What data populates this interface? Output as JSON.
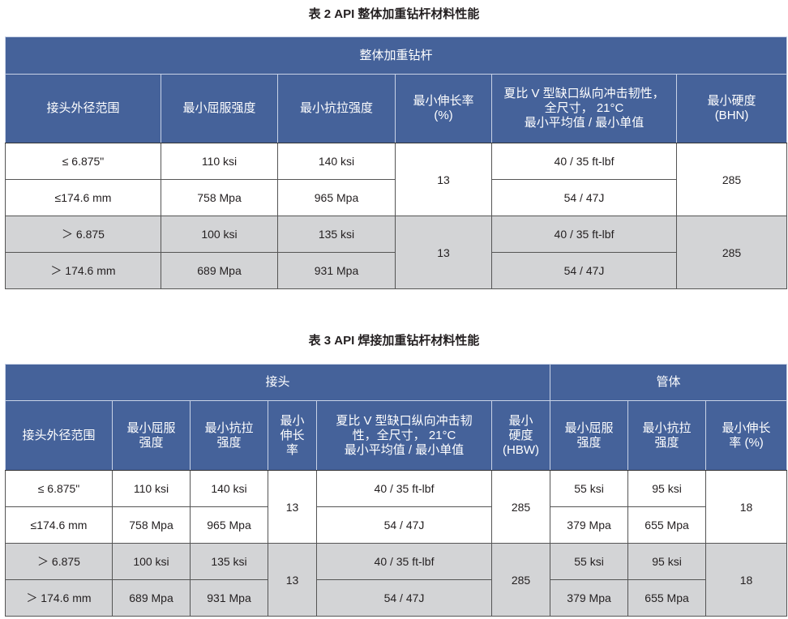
{
  "table2": {
    "title": "表 2 API 整体加重钻杆材料性能",
    "group": "整体加重钻杆",
    "headers": [
      "接头外径范围",
      "最小屈服强度",
      "最小抗拉强度",
      "最小伸长率\n(%)",
      "夏比 V 型缺口纵向冲击韧性，\n全尺寸， 21°C\n最小平均值 / 最小单值",
      "最小硬度\n(BHN)"
    ],
    "rows": [
      {
        "range": "≤ 6.875\"",
        "yield": "110 ksi",
        "tensile": "140 ksi",
        "elong": "13",
        "impact": "40 / 35 ft-lbf",
        "hard": "285"
      },
      {
        "range": "≤174.6 mm",
        "yield": "758 Mpa",
        "tensile": "965 Mpa",
        "impact": "54 / 47J"
      },
      {
        "range": "＞ 6.875",
        "yield": "100 ksi",
        "tensile": "135 ksi",
        "elong": "13",
        "impact": "40 / 35 ft-lbf",
        "hard": "285"
      },
      {
        "range": "＞ 174.6 mm",
        "yield": "689 Mpa",
        "tensile": "931 Mpa",
        "impact": "54 / 47J"
      }
    ]
  },
  "table3": {
    "title": "表 3 API 焊接加重钻杆材料性能",
    "groups": [
      "接头",
      "管体"
    ],
    "headers": [
      "接头外径范围",
      "最小屈服\n强度",
      "最小抗拉\n强度",
      "最小\n伸长\n率",
      "夏比 V 型缺口纵向冲击韧\n性，全尺寸， 21°C\n最小平均值 / 最小单值",
      "最小\n硬度\n(HBW)",
      "最小屈服\n强度",
      "最小抗拉\n强度",
      "最小伸长\n率 (%)"
    ],
    "rows": [
      {
        "range": "≤ 6.875\"",
        "yield": "110 ksi",
        "tensile": "140 ksi",
        "elong": "13",
        "impact": "40 / 35 ft-lbf",
        "hard": "285",
        "pyield": "55 ksi",
        "ptensile": "95 ksi",
        "pelong": "18"
      },
      {
        "range": "≤174.6 mm",
        "yield": "758 Mpa",
        "tensile": "965 Mpa",
        "impact": "54 / 47J",
        "pyield": "379 Mpa",
        "ptensile": "655 Mpa"
      },
      {
        "range": "＞ 6.875",
        "yield": "100 ksi",
        "tensile": "135 ksi",
        "elong": "13",
        "impact": "40 / 35 ft-lbf",
        "hard": "285",
        "pyield": "55 ksi",
        "ptensile": "95 ksi",
        "pelong": "18"
      },
      {
        "range": "＞ 174.6 mm",
        "yield": "689 Mpa",
        "tensile": "931 Mpa",
        "impact": "54 / 47J",
        "pyield": "379 Mpa",
        "ptensile": "655 Mpa"
      }
    ]
  }
}
